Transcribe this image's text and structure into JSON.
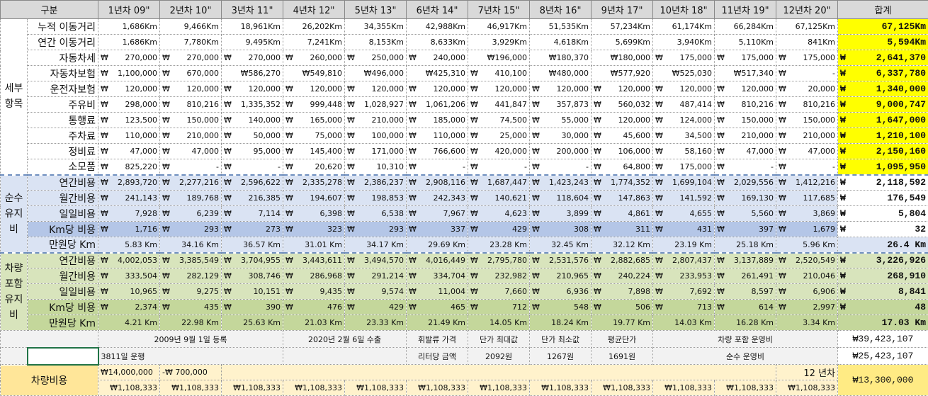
{
  "header": {
    "group_label": "구분",
    "columns": [
      "1년차 09\"",
      "2년차 10\"",
      "3년차 11\"",
      "4년차 12\"",
      "5년차 13\"",
      "6년차 14\"",
      "7년차 15\"",
      "8년차 16\"",
      "9년차 17\"",
      "10년차 18\"",
      "11년차 19\"",
      "12년차 20\""
    ],
    "total_label": "합계"
  },
  "currency": "₩",
  "sections": [
    {
      "label": "세부\n항목",
      "rows": [
        {
          "label": "누적 이동거리",
          "values": [
            "1,686Km",
            "9,466Km",
            "18,961Km",
            "26,202Km",
            "34,355Km",
            "42,988Km",
            "46,917Km",
            "51,535Km",
            "57,234Km",
            "61,174Km",
            "66,284Km",
            "67,125Km"
          ],
          "total": "67,125Km"
        },
        {
          "label": "연간 이동거리",
          "values": [
            "1,686Km",
            "7,780Km",
            "9,495Km",
            "7,241Km",
            "8,153Km",
            "8,633Km",
            "3,929Km",
            "4,618Km",
            "5,699Km",
            "3,940Km",
            "5,110Km",
            "841Km"
          ],
          "total": "5,594Km"
        },
        {
          "label": "자동차세",
          "values": [
            "270,000",
            "270,000",
            "270,000",
            "260,000",
            "250,000",
            "240,000",
            "₩196,000",
            "₩180,370",
            "₩180,000",
            "175,000",
            "175,000",
            "175,000"
          ],
          "total": "2,641,370"
        },
        {
          "label": "자동차보험",
          "values": [
            "1,100,000",
            "670,000",
            "₩586,270",
            "₩549,810",
            "₩496,000",
            "₩425,310",
            "410,100",
            "₩480,000",
            "₩577,920",
            "₩525,030",
            "₩517,340",
            "-"
          ],
          "total": "6,337,780"
        },
        {
          "label": "운전자보험",
          "values": [
            "120,000",
            "120,000",
            "120,000",
            "120,000",
            "120,000",
            "120,000",
            "120,000",
            "120,000",
            "120,000",
            "120,000",
            "120,000",
            "20,000"
          ],
          "total": "1,340,000"
        },
        {
          "label": "주유비",
          "values": [
            "298,000",
            "810,216",
            "1,335,352",
            "999,448",
            "1,028,927",
            "1,061,206",
            "441,847",
            "357,873",
            "560,032",
            "487,414",
            "810,216",
            "810,216"
          ],
          "total": "9,000,747"
        },
        {
          "label": "통행료",
          "values": [
            "123,500",
            "150,000",
            "140,000",
            "165,000",
            "210,000",
            "185,000",
            "74,500",
            "55,000",
            "120,000",
            "124,000",
            "150,000",
            "150,000"
          ],
          "total": "1,647,000"
        },
        {
          "label": "주차료",
          "values": [
            "110,000",
            "210,000",
            "50,000",
            "75,000",
            "100,000",
            "110,000",
            "25,000",
            "30,000",
            "45,600",
            "34,500",
            "210,000",
            "210,000"
          ],
          "total": "1,210,100"
        },
        {
          "label": "정비료",
          "values": [
            "47,000",
            "47,000",
            "95,000",
            "145,400",
            "171,000",
            "766,600",
            "420,000",
            "200,000",
            "106,000",
            "58,160",
            "47,000",
            "47,000"
          ],
          "total": "2,150,160"
        },
        {
          "label": "소모품",
          "values": [
            "825,220",
            "-",
            "-",
            "20,620",
            "10,310",
            "-",
            "-",
            "-",
            "64,800",
            "175,000",
            "-",
            "-"
          ],
          "total": "1,095,950"
        }
      ]
    },
    {
      "label": "순수\n유지\n비",
      "rows": [
        {
          "label": "연간비용",
          "values": [
            "2,893,720",
            "2,277,216",
            "2,596,622",
            "2,335,278",
            "2,386,237",
            "2,908,116",
            "1,687,447",
            "1,423,243",
            "1,774,352",
            "1,699,104",
            "2,029,556",
            "1,412,216"
          ],
          "total": "2,118,592"
        },
        {
          "label": "월간비용",
          "values": [
            "241,143",
            "189,768",
            "216,385",
            "194,607",
            "198,853",
            "242,343",
            "140,621",
            "118,604",
            "147,863",
            "141,592",
            "169,130",
            "117,685"
          ],
          "total": "176,549"
        },
        {
          "label": "일일비용",
          "values": [
            "7,928",
            "6,239",
            "7,114",
            "6,398",
            "6,538",
            "7,967",
            "4,623",
            "3,899",
            "4,861",
            "4,655",
            "5,560",
            "3,869"
          ],
          "total": "5,804"
        },
        {
          "label": "Km당 비용",
          "values": [
            "1,716",
            "293",
            "273",
            "323",
            "293",
            "337",
            "429",
            "308",
            "311",
            "431",
            "397",
            "1,679"
          ],
          "total": "32"
        },
        {
          "label": "만원당 Km",
          "values": [
            "5.83 Km",
            "34.16 Km",
            "36.57 Km",
            "31.01 Km",
            "34.17 Km",
            "29.69 Km",
            "23.28 Km",
            "32.45 Km",
            "32.12 Km",
            "23.19 Km",
            "25.18 Km",
            "5.96 Km"
          ],
          "total": "26.4 Km"
        }
      ]
    },
    {
      "label": "차량\n포함\n유지\n비",
      "rows": [
        {
          "label": "연간비용",
          "values": [
            "4,002,053",
            "3,385,549",
            "3,704,955",
            "3,443,611",
            "3,494,570",
            "4,016,449",
            "2,795,780",
            "2,531,576",
            "2,882,685",
            "2,807,437",
            "3,137,889",
            "2,520,549"
          ],
          "total": "3,226,926"
        },
        {
          "label": "월간비용",
          "values": [
            "333,504",
            "282,129",
            "308,746",
            "286,968",
            "291,214",
            "334,704",
            "232,982",
            "210,965",
            "240,224",
            "233,953",
            "261,491",
            "210,046"
          ],
          "total": "268,910"
        },
        {
          "label": "일일비용",
          "values": [
            "10,965",
            "9,275",
            "10,151",
            "9,435",
            "9,574",
            "11,004",
            "7,660",
            "6,936",
            "7,898",
            "7,692",
            "8,597",
            "6,906"
          ],
          "total": "8,841"
        },
        {
          "label": "Km당 비용",
          "values": [
            "2,374",
            "435",
            "390",
            "476",
            "429",
            "465",
            "712",
            "548",
            "506",
            "713",
            "614",
            "2,997"
          ],
          "total": "48"
        },
        {
          "label": "만원당 Km",
          "values": [
            "4.21 Km",
            "22.98 Km",
            "25.63 Km",
            "21.03 Km",
            "23.33 Km",
            "21.49 Km",
            "14.05 Km",
            "18.24 Km",
            "19.77 Km",
            "14.03 Km",
            "16.28 Km",
            "3.34 Km"
          ],
          "total": "17.03 Km"
        }
      ]
    }
  ],
  "info": {
    "registered": "2009년 9월 1일 등록",
    "exported": "2020년 2월 6일 수출",
    "fuel_price": "휘발류 가격",
    "unit_max": "단가 최대값",
    "unit_min": "단가 최소값",
    "unit_avg": "평균단가",
    "incl_cost_label": "차량 포함 운영비",
    "incl_cost_total": "₩39,423,107",
    "days_driven": "3811일 운행",
    "per_liter": "리터당 금액",
    "max_value": "2092원",
    "min_value": "1267원",
    "avg_value": "1691원",
    "pure_cost_label": "순수 운영비",
    "pure_cost_total": "₩25,423,107"
  },
  "vehicle_cost": {
    "label": "차량비용",
    "price": "₩14,000,000",
    "residual": "-₩ 700,000",
    "years": "12 년차",
    "total": "₩13,300,000",
    "monthly": [
      "₩1,108,333",
      "₩1,108,333",
      "₩1,108,333",
      "₩1,108,333",
      "₩1,108,333",
      "₩1,108,333",
      "₩1,108,333",
      "₩1,108,333",
      "₩1,108,333",
      "₩1,108,333",
      "₩1,108,333",
      "₩1,108,333"
    ]
  }
}
